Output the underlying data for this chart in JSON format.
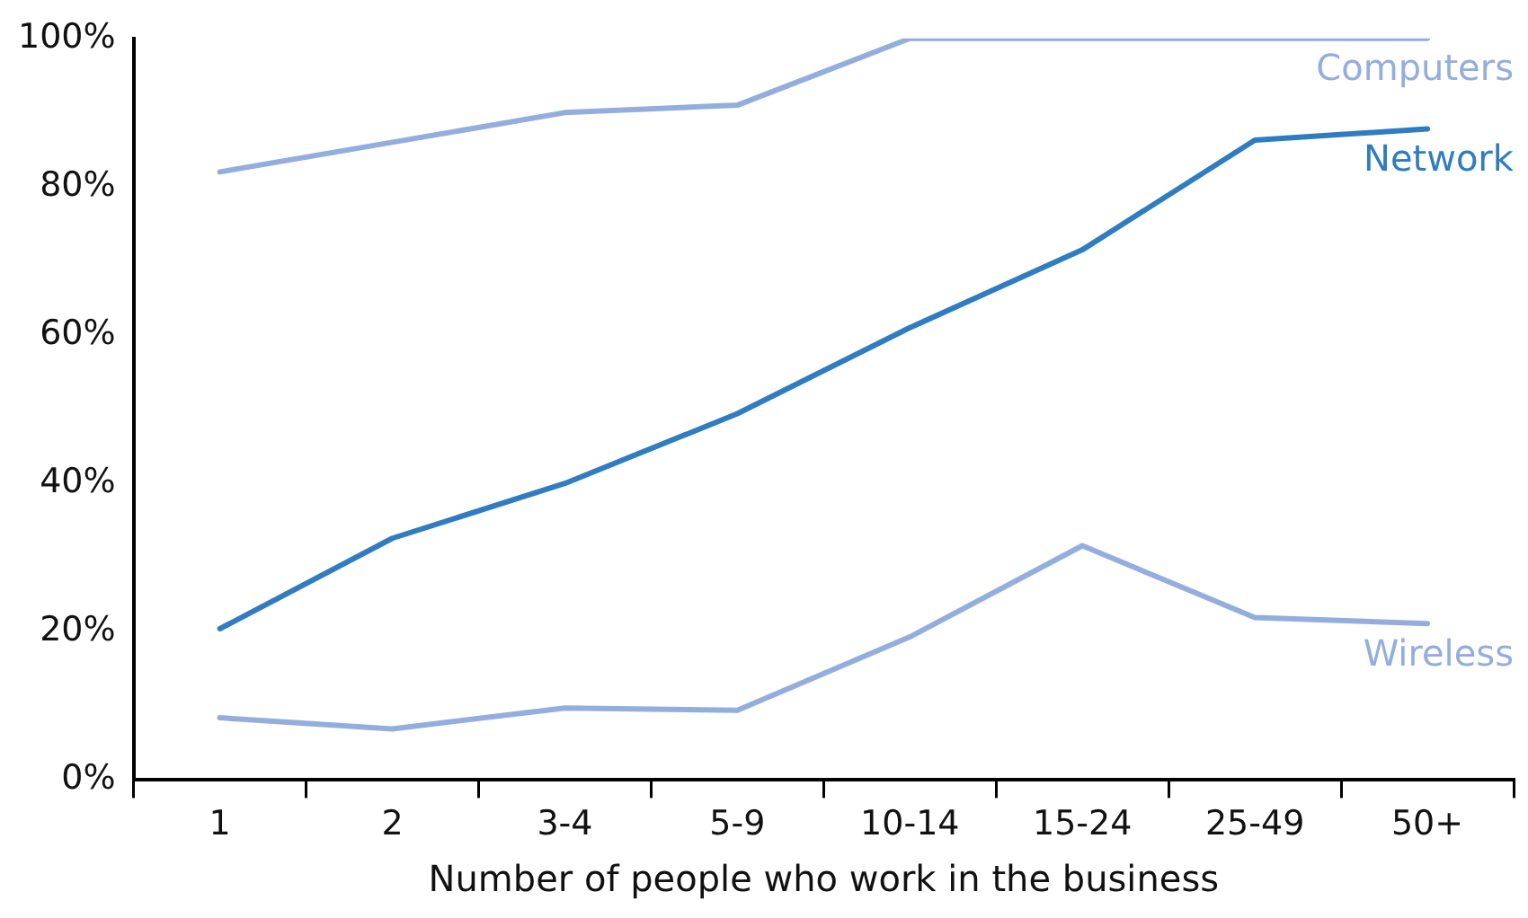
{
  "chart_data": {
    "type": "line",
    "xlabel": "Number of people who work in the business",
    "categories": [
      "1",
      "2",
      "3-4",
      "5-9",
      "10-14",
      "15-24",
      "25-49",
      "50+"
    ],
    "series": [
      {
        "name": "Computers",
        "color": "#93aede",
        "values": [
          82,
          86,
          90,
          91,
          100,
          100,
          100,
          100
        ]
      },
      {
        "name": "Network",
        "color": "#2f7cc2",
        "values": [
          20.4,
          32.6,
          40,
          49.4,
          61,
          71.5,
          86.3,
          87.8
        ]
      },
      {
        "name": "Wireless",
        "color": "#93aede",
        "values": [
          8.4,
          6.9,
          9.7,
          9.4,
          19.3,
          31.6,
          21.9,
          21.1
        ]
      }
    ],
    "ylim": [
      0,
      100
    ],
    "yticks": [
      {
        "value": 0,
        "label": "0%"
      },
      {
        "value": 20,
        "label": "20%"
      },
      {
        "value": 40,
        "label": "40%"
      },
      {
        "value": 60,
        "label": "60%"
      },
      {
        "value": 80,
        "label": "80%"
      },
      {
        "value": 100,
        "label": "100%"
      }
    ],
    "grid": false,
    "legend": false,
    "marker": "none",
    "line_style": "solid"
  }
}
